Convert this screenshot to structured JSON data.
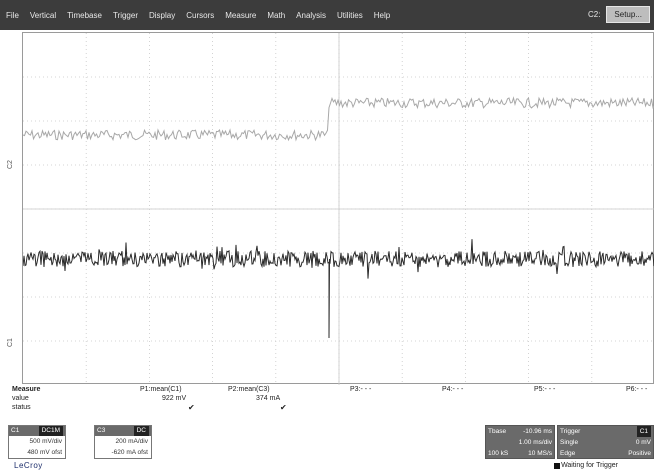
{
  "menu": {
    "items": [
      "File",
      "Vertical",
      "Timebase",
      "Trigger",
      "Display",
      "Cursors",
      "Measure",
      "Math",
      "Analysis",
      "Utilities",
      "Help"
    ],
    "channel": "C2:",
    "setup_label": "Setup..."
  },
  "traces": [
    {
      "tag": "C2",
      "color": "#a8a8a8"
    },
    {
      "tag": "C1",
      "color": "#2a2a2a"
    }
  ],
  "measure": {
    "header": "Measure",
    "row_labels": [
      "value",
      "status"
    ],
    "columns": [
      {
        "name": "P1:mean(C1)",
        "value": "922 mV",
        "status": "✔"
      },
      {
        "name": "P2:mean(C3)",
        "value": "374 mA",
        "status": "✔"
      },
      {
        "name": "P3:- - -",
        "value": "",
        "status": ""
      },
      {
        "name": "P4:- - -",
        "value": "",
        "status": ""
      },
      {
        "name": "P5:- - -",
        "value": "",
        "status": ""
      },
      {
        "name": "P6:- - -",
        "value": "",
        "status": ""
      }
    ]
  },
  "channels": [
    {
      "id": "C1",
      "badge": "DC1M",
      "vdiv": "500 mV/div",
      "offset": "480 mV ofst"
    },
    {
      "id": "C3",
      "badge": "DC",
      "vdiv": "200 mA/div",
      "offset": "-620 mA ofst"
    }
  ],
  "timebase": {
    "label": "Tbase",
    "value": "-10.96 ms",
    "div": "1.00 ms/div",
    "samples": "100 kS",
    "rate": "10 MS/s"
  },
  "trigger": {
    "label": "Trigger",
    "badge": "C1",
    "mode": "Single",
    "level": "0 mV",
    "type": "Edge",
    "slope": "Positive"
  },
  "brand": "LeCroy",
  "status": "Waiting for Trigger",
  "colors": {
    "menubar": "#3c3c3c",
    "grid": "#c8c8c8",
    "brand": "#1c2d6b"
  }
}
